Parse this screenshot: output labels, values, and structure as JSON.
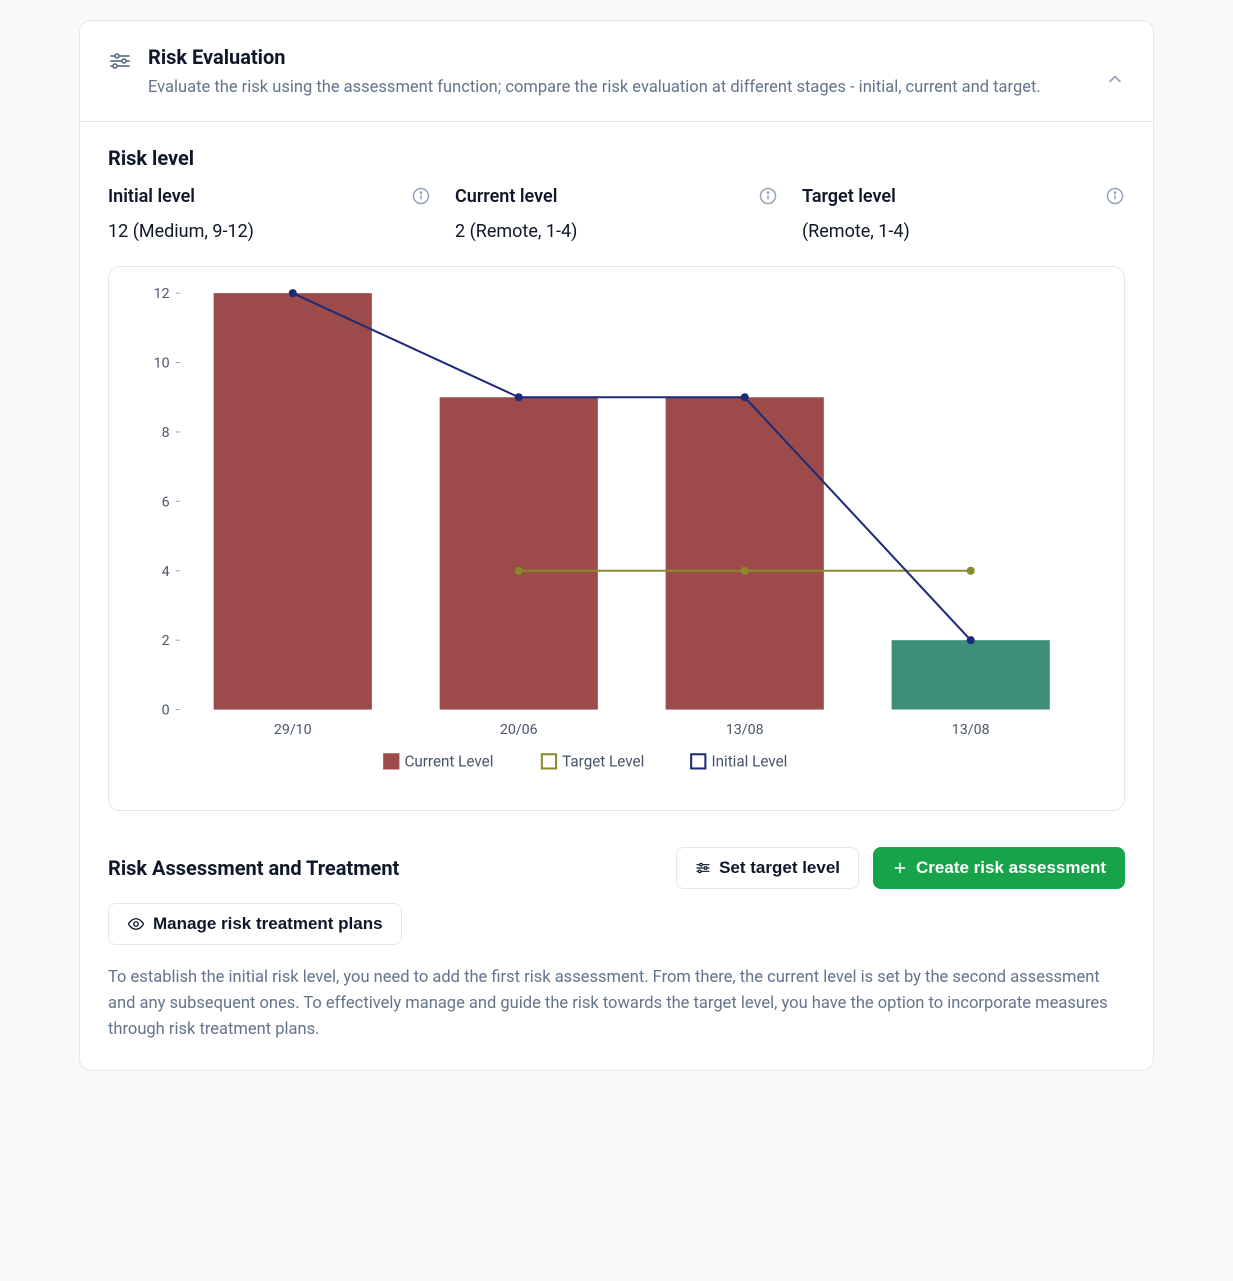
{
  "header": {
    "title": "Risk Evaluation",
    "description": "Evaluate the risk using the assessment function; compare the risk evaluation at different stages - initial, current and target."
  },
  "risk_level": {
    "title": "Risk level",
    "initial": {
      "label": "Initial level",
      "value": "12 (Medium, 9-12)"
    },
    "current": {
      "label": "Current level",
      "value": "2 (Remote, 1-4)"
    },
    "target": {
      "label": "Target level",
      "value": "(Remote, 1-4)"
    }
  },
  "chart": {
    "type": "bar+line",
    "background_color": "#ffffff",
    "grid_color": "#e5e7eb",
    "axis_color": "#94a3b8",
    "tick_label_color": "#475569",
    "tick_fontsize": 14,
    "ylim": [
      0,
      12
    ],
    "ytick_step": 2,
    "categories": [
      "29/10",
      "20/06",
      "13/08",
      "13/08"
    ],
    "series": {
      "current_level": {
        "type": "bar",
        "label": "Current Level",
        "values": [
          12,
          9,
          9,
          2
        ],
        "colors": [
          "#9c4a4a",
          "#9c4a4a",
          "#9c4a4a",
          "#3e8f7a"
        ],
        "bar_width": 0.7
      },
      "target_level": {
        "type": "line",
        "label": "Target Level",
        "values": [
          null,
          4,
          4,
          4
        ],
        "color": "#8a8a2a",
        "line_width": 2,
        "marker_radius": 3.5,
        "marker_fill": "#8a8a2a"
      },
      "initial_level": {
        "type": "line",
        "label": "Initial Level",
        "values": [
          12,
          9,
          9,
          2
        ],
        "color": "#1e2a78",
        "line_width": 2,
        "marker_radius": 3.5,
        "marker_fill": "#1e2a78"
      }
    },
    "legend": {
      "position": "bottom-center",
      "fontsize": 15,
      "text_color": "#475569",
      "items": [
        {
          "label": "Current Level",
          "swatch_fill": "#9c4a4a",
          "swatch_stroke": "#9c4a4a",
          "filled": true
        },
        {
          "label": "Target Level",
          "swatch_fill": "none",
          "swatch_stroke": "#8a8a2a",
          "filled": false
        },
        {
          "label": "Initial Level",
          "swatch_fill": "none",
          "swatch_stroke": "#1e2a78",
          "filled": false
        }
      ]
    }
  },
  "treatment": {
    "title": "Risk Assessment and Treatment",
    "buttons": {
      "set_target": "Set target level",
      "create_assessment": "Create risk assessment",
      "manage_plans": "Manage risk treatment plans"
    },
    "helper": "To establish the initial risk level, you need to add the first risk assessment. From there, the current level is set by the second assessment and any subsequent ones. To effectively manage and guide the risk towards the target level, you have the option to incorporate measures through risk treatment plans."
  }
}
